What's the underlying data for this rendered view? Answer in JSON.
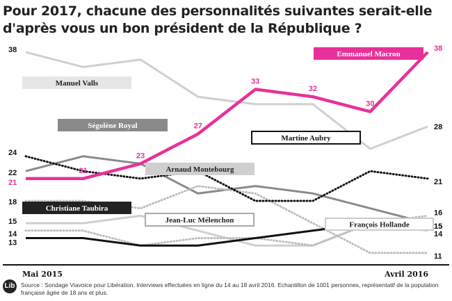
{
  "title": "Pour 2017, chacune des personnalités suivantes serait-elle d'après vous un bon président de la République ?",
  "x_start_label": "Mai 2015",
  "x_end_label": "Avril 2016",
  "logo_text": "Lib",
  "source": "Source : Sondage Viavoice pour Libération. Interviews effectuées en ligne du 14 au 18 avril 2016. Echantillon de 1001 personnes, représentatif de la population française âgée de 18 ans et plus.",
  "colors": {
    "macron": "#e8309a",
    "black": "#111111",
    "dark_grey": "#555555",
    "mid_grey": "#8a8a8a",
    "light_grey": "#cfcfcf",
    "dotted_grey": "#bdbdbd"
  },
  "chart_data": {
    "type": "line",
    "title": "Pour 2017, chacune des personnalités suivantes serait-elle d'après vous un bon président de la République ?",
    "xlabel": "",
    "ylabel": "",
    "x_range": [
      "Mai 2015",
      "Avril 2016"
    ],
    "grid": false,
    "legend": "inline",
    "series": [
      {
        "name": "Emmanuel Macron",
        "color": "#e8309a",
        "values": [
          21,
          21,
          23,
          27,
          33,
          32,
          30,
          38
        ],
        "labels": [
          "21",
          "21",
          "23",
          "27",
          "33",
          "32",
          "30",
          "38"
        ]
      },
      {
        "name": "Manuel Valls",
        "color": "#cfcfcf",
        "values": [
          38,
          36,
          37,
          32,
          31,
          31,
          25,
          28
        ],
        "labels": [
          "38",
          "",
          "",
          "",
          "",
          "",
          "",
          "28"
        ]
      },
      {
        "name": "Ségolène Royal",
        "color": "#8a8a8a",
        "values": [
          22,
          24,
          23,
          19,
          20,
          19,
          17,
          15
        ],
        "labels": [
          "22",
          "",
          "",
          "",
          "",
          "",
          "",
          "15"
        ]
      },
      {
        "name": "Martine Aubry",
        "color": "#111111",
        "values": [
          24,
          22,
          21,
          22,
          18,
          18,
          22,
          21
        ],
        "labels": [
          "24",
          "",
          "",
          "",
          "",
          "",
          "",
          "21"
        ]
      },
      {
        "name": "Arnaud Montebourg",
        "color": "#bdbdbd",
        "values": [
          18,
          18,
          17,
          20,
          19,
          15,
          11,
          11
        ],
        "labels": [
          "18",
          "",
          "",
          "",
          "",
          "",
          "",
          "11"
        ]
      },
      {
        "name": "Christiane Taubira",
        "color": "#111111",
        "values": [
          13,
          13,
          12,
          12,
          13,
          14,
          15,
          15
        ],
        "labels": [
          "13",
          "",
          "",
          "",
          "",
          "",
          "",
          "15"
        ]
      },
      {
        "name": "Jean-Luc Mélenchon",
        "color": "#bdbdbd",
        "values": [
          14,
          14,
          12,
          13,
          13,
          12,
          15,
          16
        ],
        "labels": [
          "14",
          "",
          "",
          "",
          "",
          "",
          "",
          "16"
        ]
      },
      {
        "name": "François Hollande",
        "color": "#cfcfcf",
        "values": [
          15,
          15,
          16,
          14,
          12,
          12,
          15,
          14
        ],
        "labels": [
          "15",
          "",
          "",
          "",
          "",
          "",
          "",
          "14"
        ]
      }
    ]
  }
}
